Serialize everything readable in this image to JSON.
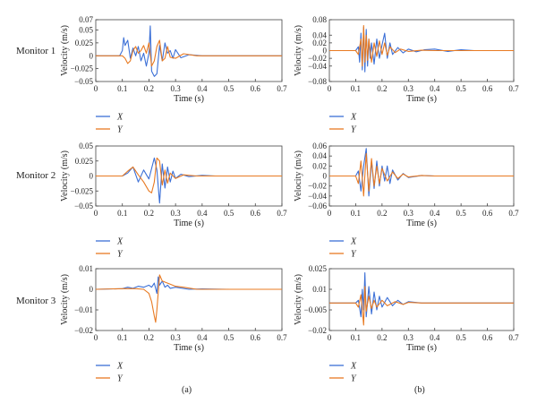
{
  "colors": {
    "X": "#3b6fd6",
    "Y": "#e87a22",
    "axis": "#444444"
  },
  "row_labels": [
    "Monitor 1",
    "Monitor 2",
    "Monitor 3"
  ],
  "panel_labels": [
    "(a)",
    "(b)"
  ],
  "chart_data": [
    {
      "type": "line",
      "monitor": "Monitor 1",
      "panel": "(a)",
      "xlabel": "Time (s)",
      "ylabel": "Velocity (m/s)",
      "xlim": [
        0,
        0.7
      ],
      "ylim": [
        -0.05,
        0.07
      ],
      "xticks": [
        0,
        0.1,
        0.2,
        0.3,
        0.4,
        0.5,
        0.6,
        0.7
      ],
      "xtick_labels": [
        "0",
        "0.1",
        "0.2",
        "0.3",
        "0.4",
        "0.5",
        "0.6",
        "0.7"
      ],
      "yticks": [
        -0.05,
        -0.025,
        0,
        0.025,
        0.05,
        0.07
      ],
      "ytick_labels": [
        "−0.05",
        "−0.025",
        "0",
        "0.025",
        "0.05",
        "0.07"
      ],
      "legend": [
        "X",
        "Y"
      ],
      "series": [
        {
          "name": "X",
          "x": [
            0,
            0.09,
            0.1,
            0.105,
            0.11,
            0.12,
            0.13,
            0.14,
            0.15,
            0.16,
            0.17,
            0.18,
            0.19,
            0.2,
            0.205,
            0.21,
            0.22,
            0.23,
            0.24,
            0.25,
            0.26,
            0.27,
            0.28,
            0.29,
            0.3,
            0.32,
            0.35,
            0.4,
            0.45,
            0.5,
            0.7
          ],
          "y": [
            0,
            0,
            0.01,
            0.035,
            0.02,
            0.03,
            -0.005,
            0.015,
            0,
            0.018,
            -0.01,
            0.005,
            -0.02,
            0.005,
            0.058,
            -0.03,
            -0.04,
            -0.035,
            0.02,
            -0.01,
            0.025,
            0.005,
            0.01,
            -0.005,
            0.012,
            -0.004,
            0.002,
            0,
            0,
            0,
            0
          ]
        },
        {
          "name": "Y",
          "x": [
            0,
            0.1,
            0.11,
            0.12,
            0.13,
            0.14,
            0.15,
            0.16,
            0.17,
            0.18,
            0.19,
            0.2,
            0.21,
            0.22,
            0.23,
            0.24,
            0.25,
            0.26,
            0.27,
            0.28,
            0.3,
            0.33,
            0.38,
            0.45,
            0.7
          ],
          "y": [
            0,
            0,
            -0.005,
            -0.015,
            -0.01,
            0.01,
            0.018,
            0.005,
            0.01,
            0.02,
            0.005,
            0.025,
            -0.02,
            -0.01,
            0.018,
            0.03,
            -0.01,
            -0.005,
            0.018,
            -0.003,
            -0.005,
            0.004,
            0,
            0,
            0
          ]
        }
      ]
    },
    {
      "type": "line",
      "monitor": "Monitor 1",
      "panel": "(b)",
      "xlabel": "Time (s)",
      "ylabel": "Velocity (m/s)",
      "xlim": [
        0,
        0.7
      ],
      "ylim": [
        -0.08,
        0.08
      ],
      "xticks": [
        0,
        0.1,
        0.2,
        0.3,
        0.4,
        0.5,
        0.6,
        0.7
      ],
      "xtick_labels": [
        "0",
        "0.1",
        "0.2",
        "0.3",
        "0.4",
        "0.5",
        "0.6",
        "0.7"
      ],
      "yticks": [
        -0.08,
        -0.04,
        -0.02,
        0,
        0.02,
        0.04,
        0.08
      ],
      "ytick_labels": [
        "−0.08",
        "−0.04",
        "−0.02",
        "0",
        "0.02",
        "0.04",
        "0.08"
      ],
      "legend": [
        "X",
        "Y"
      ],
      "series": [
        {
          "name": "X",
          "x": [
            0,
            0.1,
            0.11,
            0.115,
            0.12,
            0.125,
            0.13,
            0.135,
            0.14,
            0.145,
            0.15,
            0.155,
            0.16,
            0.17,
            0.18,
            0.19,
            0.2,
            0.21,
            0.22,
            0.23,
            0.24,
            0.26,
            0.28,
            0.3,
            0.33,
            0.36,
            0.4,
            0.45,
            0.5,
            0.55,
            0.7
          ],
          "y": [
            0,
            0,
            0.01,
            -0.03,
            0.045,
            -0.05,
            0.06,
            -0.055,
            0.055,
            -0.04,
            0.03,
            -0.02,
            0.02,
            -0.035,
            0.03,
            -0.02,
            0.015,
            0.045,
            -0.02,
            0.02,
            -0.01,
            0.008,
            -0.006,
            0.004,
            -0.003,
            0.002,
            0.004,
            -0.002,
            0.002,
            0,
            0
          ]
        },
        {
          "name": "Y",
          "x": [
            0,
            0.1,
            0.11,
            0.12,
            0.125,
            0.13,
            0.135,
            0.14,
            0.145,
            0.15,
            0.16,
            0.17,
            0.18,
            0.19,
            0.2,
            0.21,
            0.22,
            0.23,
            0.25,
            0.27,
            0.3,
            0.35,
            0.4,
            0.7
          ],
          "y": [
            0,
            0,
            -0.01,
            0.03,
            -0.04,
            0.065,
            -0.03,
            0.04,
            -0.025,
            0.03,
            -0.03,
            0.02,
            -0.015,
            0.025,
            -0.01,
            0.02,
            -0.012,
            0.01,
            -0.005,
            0.004,
            -0.002,
            0.001,
            0,
            0
          ]
        }
      ]
    },
    {
      "type": "line",
      "monitor": "Monitor 2",
      "panel": "(a)",
      "xlabel": "Time (s)",
      "ylabel": "Velocity (m/s)",
      "xlim": [
        0,
        0.7
      ],
      "ylim": [
        -0.05,
        0.05
      ],
      "xticks": [
        0,
        0.1,
        0.2,
        0.3,
        0.4,
        0.5,
        0.6,
        0.7
      ],
      "xtick_labels": [
        "0",
        "0.1",
        "0.2",
        "0.3",
        "0.4",
        "0.5",
        "0.6",
        "0.7"
      ],
      "yticks": [
        -0.05,
        -0.025,
        0,
        0.025,
        0.05
      ],
      "ytick_labels": [
        "−0.05",
        "−0.025",
        "0",
        "0.025",
        "0.05"
      ],
      "legend": [
        "X",
        "Y"
      ],
      "series": [
        {
          "name": "X",
          "x": [
            0,
            0.1,
            0.12,
            0.14,
            0.16,
            0.18,
            0.2,
            0.22,
            0.23,
            0.24,
            0.25,
            0.26,
            0.27,
            0.28,
            0.29,
            0.3,
            0.32,
            0.35,
            0.4,
            0.45,
            0.7
          ],
          "y": [
            0,
            0,
            0.005,
            0.015,
            -0.01,
            0.01,
            -0.005,
            0.03,
            0.01,
            -0.045,
            0.02,
            -0.02,
            0.015,
            -0.01,
            0.008,
            -0.004,
            0.003,
            -0.001,
            0.001,
            0,
            0
          ]
        },
        {
          "name": "Y",
          "x": [
            0,
            0.1,
            0.12,
            0.14,
            0.16,
            0.18,
            0.2,
            0.21,
            0.22,
            0.23,
            0.24,
            0.25,
            0.26,
            0.27,
            0.28,
            0.3,
            0.33,
            0.38,
            0.45,
            0.7
          ],
          "y": [
            0,
            0,
            0.008,
            0.015,
            0.002,
            -0.01,
            -0.025,
            -0.028,
            -0.01,
            0.03,
            0.025,
            -0.015,
            0.01,
            -0.012,
            0.005,
            -0.004,
            0.002,
            0,
            0,
            0
          ]
        }
      ]
    },
    {
      "type": "line",
      "monitor": "Monitor 2",
      "panel": "(b)",
      "xlabel": "Time (s)",
      "ylabel": "Velocity (m/s)",
      "xlim": [
        0,
        0.7
      ],
      "ylim": [
        -0.06,
        0.06
      ],
      "xticks": [
        0,
        0.1,
        0.2,
        0.3,
        0.4,
        0.5,
        0.6,
        0.7
      ],
      "xtick_labels": [
        "0",
        "0.1",
        "0.2",
        "0.3",
        "0.4",
        "0.5",
        "0.6",
        "0.7"
      ],
      "yticks": [
        -0.06,
        -0.04,
        -0.02,
        0,
        0.02,
        0.04,
        0.06
      ],
      "ytick_labels": [
        "−0.06",
        "−0.04",
        "−0.02",
        "0",
        "0.02",
        "0.04",
        "0.06"
      ],
      "legend": [
        "X",
        "Y"
      ],
      "series": [
        {
          "name": "X",
          "x": [
            0,
            0.1,
            0.11,
            0.12,
            0.13,
            0.14,
            0.15,
            0.16,
            0.17,
            0.18,
            0.19,
            0.2,
            0.21,
            0.22,
            0.23,
            0.24,
            0.26,
            0.28,
            0.3,
            0.35,
            0.4,
            0.7
          ],
          "y": [
            0,
            0,
            0.01,
            -0.03,
            0.02,
            0.055,
            -0.04,
            0.03,
            -0.025,
            0.03,
            -0.02,
            0.02,
            -0.01,
            0.02,
            -0.015,
            0.012,
            -0.008,
            0.005,
            -0.003,
            0.001,
            0,
            0
          ]
        },
        {
          "name": "Y",
          "x": [
            0,
            0.1,
            0.11,
            0.12,
            0.13,
            0.14,
            0.15,
            0.16,
            0.17,
            0.18,
            0.19,
            0.2,
            0.22,
            0.24,
            0.26,
            0.28,
            0.3,
            0.35,
            0.4,
            0.7
          ],
          "y": [
            0,
            0,
            -0.015,
            0.03,
            -0.04,
            0.045,
            -0.03,
            0.035,
            -0.02,
            0.02,
            -0.015,
            0.015,
            -0.01,
            0.008,
            -0.005,
            0.004,
            -0.002,
            0.001,
            0,
            0
          ]
        }
      ]
    },
    {
      "type": "line",
      "monitor": "Monitor 3",
      "panel": "(a)",
      "xlabel": "Time (s)",
      "ylabel": "Velocity (m/s)",
      "xlim": [
        0,
        0.7
      ],
      "ylim": [
        -0.02,
        0.01
      ],
      "xticks": [
        0,
        0.1,
        0.2,
        0.3,
        0.4,
        0.5,
        0.6,
        0.7
      ],
      "xtick_labels": [
        "0",
        "0.1",
        "0.2",
        "0.3",
        "0.4",
        "0.5",
        "0.6",
        "0.7"
      ],
      "yticks": [
        -0.02,
        -0.01,
        0,
        0.01
      ],
      "ytick_labels": [
        "−0.02",
        "−0.01",
        "0",
        "0.01"
      ],
      "legend": [
        "X",
        "Y"
      ],
      "series": [
        {
          "name": "X",
          "x": [
            0,
            0.1,
            0.12,
            0.14,
            0.16,
            0.18,
            0.2,
            0.21,
            0.22,
            0.23,
            0.235,
            0.24,
            0.25,
            0.26,
            0.27,
            0.28,
            0.3,
            0.35,
            0.4,
            0.5,
            0.7
          ],
          "y": [
            0,
            0.0003,
            0.001,
            0.0005,
            0.0015,
            0.001,
            0.002,
            0.001,
            0.003,
            -0.002,
            0.006,
            0.002,
            0.004,
            0.001,
            0.002,
            0.0005,
            0.001,
            0,
            0.0002,
            0,
            0
          ]
        },
        {
          "name": "Y",
          "x": [
            0,
            0.1,
            0.15,
            0.18,
            0.2,
            0.21,
            0.22,
            0.225,
            0.23,
            0.24,
            0.25,
            0.27,
            0.3,
            0.33,
            0.38,
            0.45,
            0.7
          ],
          "y": [
            0,
            0.0003,
            0.0003,
            0,
            -0.002,
            -0.006,
            -0.013,
            -0.016,
            -0.01,
            0.007,
            0.004,
            0.003,
            0.0015,
            0.001,
            0,
            0,
            0
          ]
        }
      ]
    },
    {
      "type": "line",
      "monitor": "Monitor 3",
      "panel": "(b)",
      "xlabel": "Time (s)",
      "ylabel": "Velocity (m/s)",
      "xlim": [
        0,
        0.7
      ],
      "ylim": [
        -0.02,
        0.025
      ],
      "xticks": [
        0,
        0.1,
        0.2,
        0.3,
        0.4,
        0.5,
        0.6,
        0.7
      ],
      "xtick_labels": [
        "0",
        "0.1",
        "0.2",
        "0.3",
        "0.4",
        "0.5",
        "0.6",
        "0.7"
      ],
      "yticks": [
        -0.02,
        -0.005,
        0.01,
        0.025
      ],
      "ytick_labels": [
        "−0.02",
        "−0.005",
        "0.01",
        "0.025"
      ],
      "legend": [
        "X",
        "Y"
      ],
      "series": [
        {
          "name": "X",
          "x": [
            0,
            0.1,
            0.11,
            0.12,
            0.125,
            0.13,
            0.135,
            0.14,
            0.15,
            0.16,
            0.17,
            0.18,
            0.19,
            0.2,
            0.22,
            0.24,
            0.26,
            0.28,
            0.3,
            0.35,
            0.4,
            0.7
          ],
          "y": [
            0,
            0,
            0.002,
            -0.01,
            0.01,
            -0.005,
            0.022,
            -0.01,
            0.012,
            -0.008,
            0.008,
            -0.005,
            0.005,
            -0.003,
            0.004,
            -0.002,
            0.002,
            -0.001,
            0.001,
            0,
            0,
            0
          ]
        },
        {
          "name": "Y",
          "x": [
            0,
            0.1,
            0.11,
            0.12,
            0.13,
            0.135,
            0.14,
            0.15,
            0.16,
            0.17,
            0.18,
            0.2,
            0.22,
            0.25,
            0.28,
            0.3,
            0.35,
            0.4,
            0.7
          ],
          "y": [
            0,
            0,
            -0.003,
            0.006,
            -0.016,
            0.012,
            -0.006,
            0.005,
            -0.004,
            0.002,
            -0.003,
            0.002,
            -0.002,
            0.001,
            -0.001,
            0.0005,
            0,
            0,
            0
          ]
        }
      ]
    }
  ]
}
